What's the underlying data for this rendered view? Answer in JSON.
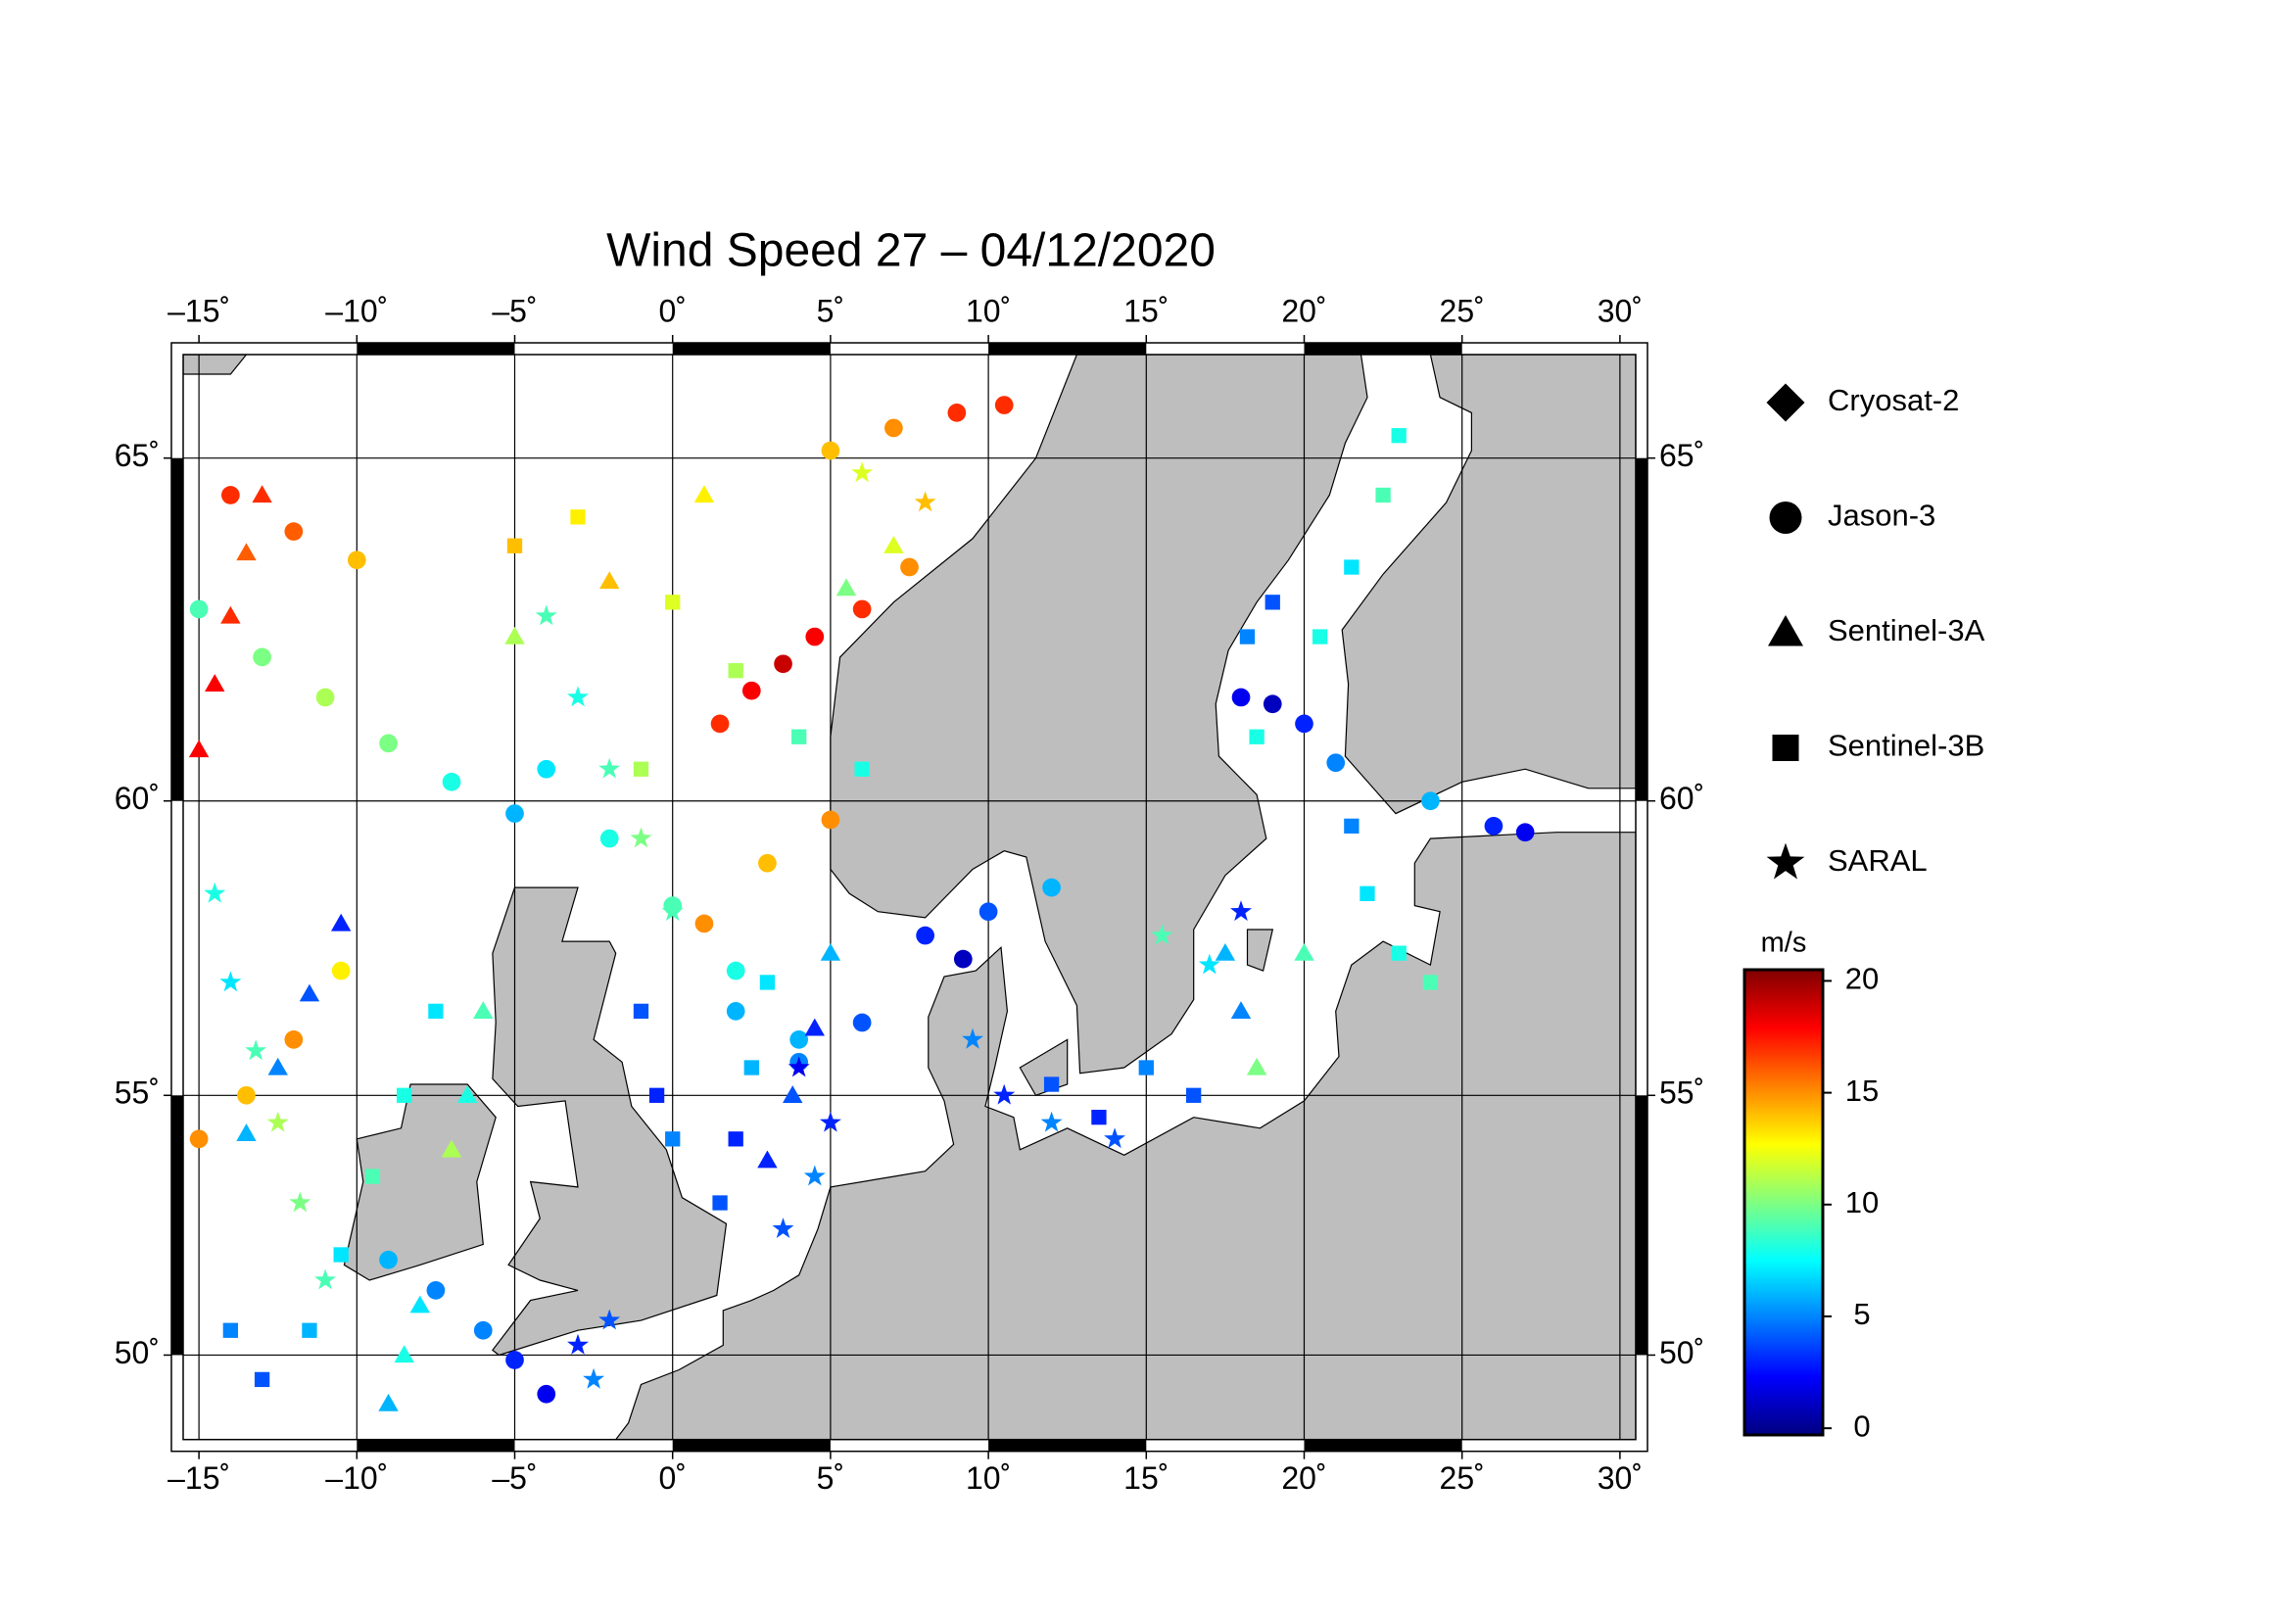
{
  "chart_data": {
    "type": "map-scatter",
    "title": "Wind Speed 27 – 04/12/2020",
    "projection": "mercator",
    "xlim": [
      -15.5,
      30.5
    ],
    "ylim": [
      48.25,
      66.35
    ],
    "xticks": [
      {
        "value": -15,
        "label": "–15˚"
      },
      {
        "value": -10,
        "label": "–10˚"
      },
      {
        "value": -5,
        "label": "–5˚"
      },
      {
        "value": 0,
        "label": "0˚"
      },
      {
        "value": 5,
        "label": "5˚"
      },
      {
        "value": 10,
        "label": "10˚"
      },
      {
        "value": 15,
        "label": "15˚"
      },
      {
        "value": 20,
        "label": "20˚"
      },
      {
        "value": 25,
        "label": "25˚"
      },
      {
        "value": 30,
        "label": "30˚"
      }
    ],
    "yticks": [
      {
        "value": 50,
        "label": "50˚"
      },
      {
        "value": 55,
        "label": "55˚"
      },
      {
        "value": 60,
        "label": "60˚"
      },
      {
        "value": 65,
        "label": "65˚"
      }
    ],
    "grid": true,
    "colorbar": {
      "label": "m/s",
      "lim": [
        -0.3,
        20.5
      ],
      "ticks": [
        0,
        5,
        10,
        15,
        20
      ],
      "colormap": "jet"
    },
    "series": [
      {
        "name": "Cryosat-2",
        "marker": "diamond",
        "x": [],
        "y": [],
        "values": []
      },
      {
        "name": "Jason-3",
        "marker": "circle",
        "x": [
          1.5,
          2.5,
          3.5,
          4.5,
          6,
          7.5,
          5,
          7,
          9,
          10.5,
          -15,
          -13.5,
          -12,
          -10.5,
          -9,
          -7.5,
          -6,
          -5,
          -4,
          2,
          4,
          6,
          8,
          9.2,
          10,
          12,
          18,
          19,
          20,
          21,
          -4,
          -2,
          0,
          2,
          4,
          -15,
          -13,
          -11,
          -9,
          -7,
          -5,
          1,
          3,
          5,
          24,
          26,
          27,
          -14,
          -12,
          -10
        ],
        "y": [
          61.2,
          61.7,
          62.1,
          62.5,
          62.9,
          63.5,
          65.1,
          65.4,
          65.6,
          65.7,
          54.2,
          55,
          56,
          57.2,
          51.9,
          51.3,
          50.5,
          49.9,
          49.2,
          56.5,
          55.6,
          56.3,
          57.8,
          57.4,
          58.2,
          58.6,
          61.6,
          61.5,
          61.2,
          60.6,
          60.5,
          59.4,
          58.3,
          57.2,
          56,
          62.9,
          62.2,
          61.6,
          60.9,
          60.3,
          59.8,
          58,
          59,
          59.7,
          60,
          59.6,
          59.5,
          64.5,
          64,
          63.6
        ],
        "values": [
          17,
          18,
          19,
          18,
          17,
          15,
          14,
          15,
          17,
          17,
          15,
          14,
          15,
          13,
          6,
          5,
          5,
          3,
          2,
          6,
          5,
          4,
          3,
          1,
          4,
          6,
          2,
          1,
          3,
          5,
          7,
          8,
          9,
          8,
          6,
          9,
          10,
          11,
          10,
          8,
          6,
          15,
          14,
          15,
          6,
          3,
          2,
          17,
          16,
          14
        ]
      },
      {
        "name": "Sentinel-3A",
        "marker": "triangle",
        "x": [
          -15,
          -14.5,
          -14,
          -13.5,
          -13,
          -10.5,
          -11.5,
          -12.5,
          -13.5,
          3,
          3.8,
          4.5,
          5,
          -8,
          -8.5,
          -9,
          17.5,
          18,
          18.5,
          20,
          7,
          5.5,
          1,
          -2,
          -5,
          -6,
          -6.5,
          -7
        ],
        "y": [
          60.8,
          61.8,
          62.8,
          63.7,
          64.5,
          58,
          56.8,
          55.5,
          54.3,
          53.8,
          55,
          56.2,
          57.5,
          51,
          50,
          49,
          57.5,
          56.5,
          55.5,
          57.5,
          63.8,
          63.2,
          64.5,
          63.3,
          62.5,
          56.5,
          55,
          54
        ],
        "values": [
          18,
          18,
          17,
          16,
          17,
          3,
          4,
          5,
          6,
          3,
          4,
          3,
          6,
          7,
          8,
          6,
          6,
          5,
          10,
          9,
          12,
          10,
          13,
          14,
          11,
          9,
          8,
          11
        ]
      },
      {
        "name": "Sentinel-3B",
        "marker": "square",
        "x": [
          23,
          22.5,
          21.5,
          20.5,
          19,
          18.2,
          18.5,
          21.5,
          22,
          23,
          24,
          1.5,
          2,
          2.5,
          3,
          -1,
          -0.5,
          0,
          -14,
          -13,
          -11.5,
          -10.5,
          -9.5,
          -8.5,
          -7.5,
          -5,
          -3,
          0,
          2,
          4,
          6,
          -1,
          12,
          13.5,
          15,
          16.5
        ],
        "y": [
          65.3,
          64.5,
          63.5,
          62.5,
          63,
          62.5,
          61,
          59.6,
          58.5,
          57.5,
          57,
          53,
          54.2,
          55.5,
          57,
          56.5,
          55,
          54.2,
          50.5,
          49.5,
          50.5,
          52,
          53.5,
          55,
          56.5,
          63.8,
          64.2,
          63,
          62,
          61,
          60.5,
          60.5,
          55.2,
          54.6,
          55.5,
          55
        ],
        "values": [
          8,
          9,
          7,
          8,
          4,
          5,
          8,
          5,
          7,
          8,
          9,
          4,
          3,
          6,
          7,
          4,
          3,
          5,
          5,
          4,
          6,
          7,
          9,
          8,
          7,
          14,
          13,
          12,
          11,
          9,
          8,
          11,
          4,
          3,
          5,
          4
        ]
      },
      {
        "name": "SARAL",
        "marker": "star",
        "x": [
          4,
          5,
          4.5,
          3.5,
          -3,
          -2.5,
          -2,
          -14.5,
          -14,
          -13.2,
          -12.5,
          -11.8,
          -11,
          -4,
          -3,
          -2,
          -1,
          0,
          9.5,
          10.5,
          12,
          14,
          15.5,
          17,
          18,
          8,
          6
        ],
        "y": [
          55.5,
          54.5,
          53.5,
          52.5,
          50.2,
          49.5,
          50.7,
          58.5,
          57,
          55.8,
          54.5,
          53,
          51.5,
          62.8,
          61.6,
          60.5,
          59.4,
          58.2,
          56,
          55,
          54.5,
          54.2,
          57.8,
          57.3,
          58.2,
          64.4,
          64.8
        ],
        "values": [
          2,
          3,
          5,
          4,
          3,
          5,
          4,
          8,
          7,
          9,
          11,
          10,
          9,
          9,
          8,
          9,
          10,
          9,
          5,
          3,
          5,
          4,
          9,
          7,
          3,
          14,
          12
        ]
      }
    ]
  }
}
